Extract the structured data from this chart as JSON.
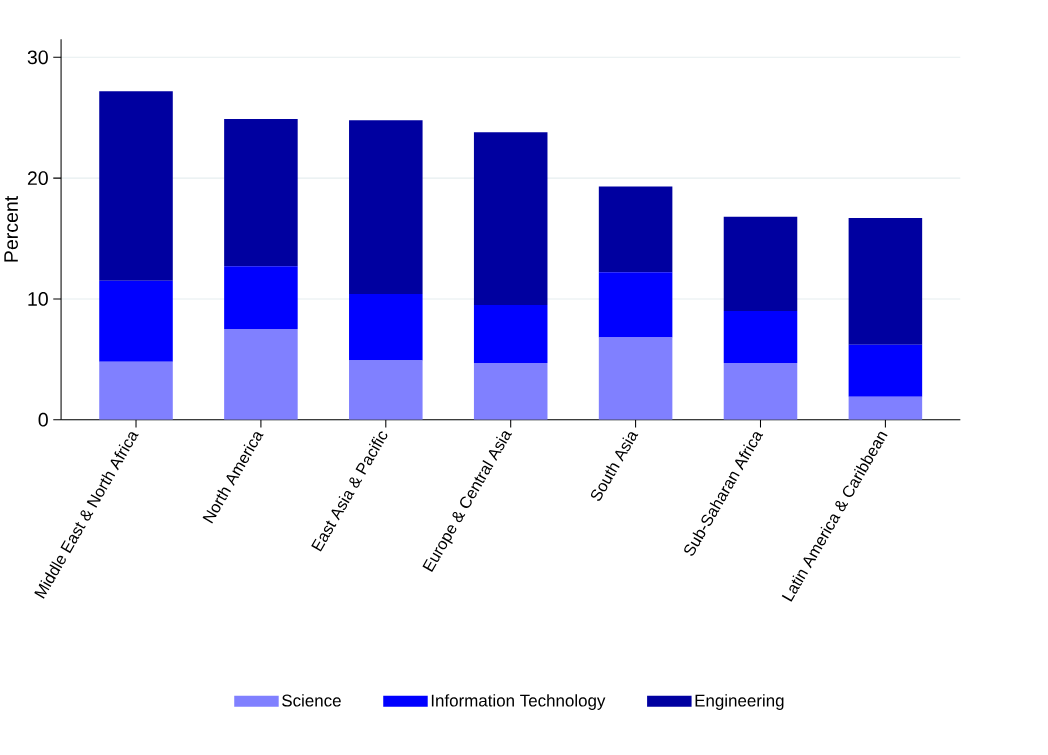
{
  "chart_data": {
    "type": "bar",
    "stacked": true,
    "ylabel": "Percent",
    "categories": [
      "Middle East & North Africa",
      "North America",
      "East Asia & Pacific",
      "Europe & Central Asia",
      "South Asia",
      "Sub-Saharan Africa",
      "Latin America & Caribbean"
    ],
    "series": [
      {
        "name": "Science",
        "color": "#8080ff",
        "values": [
          4.8,
          7.5,
          4.9,
          4.7,
          6.8,
          4.7,
          1.9
        ]
      },
      {
        "name": "Information Technology",
        "color": "#0000ff",
        "values": [
          6.7,
          5.2,
          5.5,
          4.8,
          5.4,
          4.3,
          4.3
        ]
      },
      {
        "name": "Engineering",
        "color": "#0000a0",
        "values": [
          15.7,
          12.2,
          14.4,
          14.3,
          7.1,
          7.8,
          10.5
        ]
      }
    ],
    "ylim": [
      0,
      31.5
    ],
    "yticks": [
      0,
      10,
      20,
      30
    ],
    "grid": "y",
    "legend": "bottom"
  }
}
